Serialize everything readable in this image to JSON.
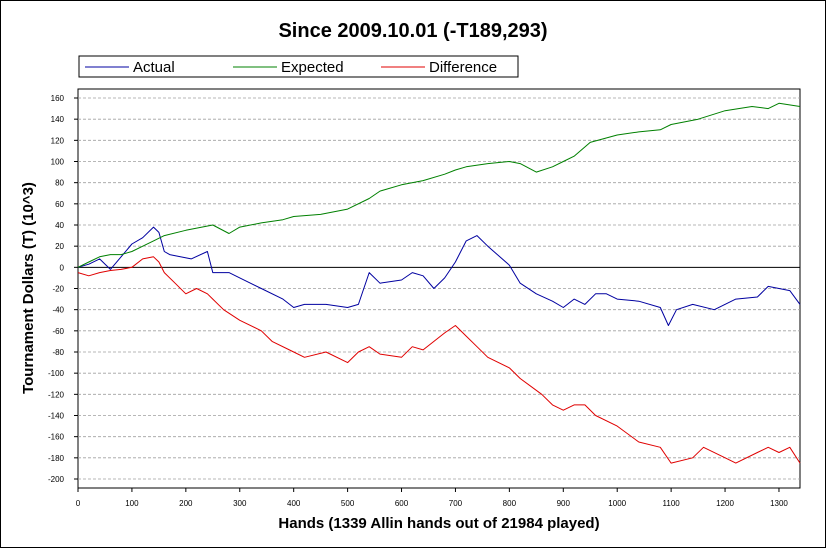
{
  "chart_data": {
    "type": "line",
    "title": "Since 2009.10.01 (-T189,293)",
    "xlabel": "Hands (1339 Allin hands out of 21984 played)",
    "ylabel": "Tournament Dollars (T) (10^3)",
    "xlim": [
      0,
      1339
    ],
    "ylim": [
      -200,
      160
    ],
    "x_ticks": [
      "0",
      "100",
      "200",
      "300",
      "400",
      "500",
      "600",
      "700",
      "800",
      "900",
      "1000",
      "1100",
      "1200",
      "1300"
    ],
    "y_ticks": [
      "160",
      "140",
      "120",
      "100",
      "80",
      "60",
      "40",
      "20",
      "0",
      "-20",
      "-40",
      "-60",
      "-80",
      "-100",
      "-120",
      "-140",
      "-160",
      "-180",
      "-200"
    ],
    "grid": "horizontal dashed",
    "legend_position": "top",
    "series": [
      {
        "name": "Actual",
        "color": "#0000a0",
        "x": [
          0,
          20,
          40,
          60,
          80,
          100,
          120,
          140,
          150,
          160,
          170,
          190,
          210,
          240,
          250,
          280,
          300,
          340,
          380,
          400,
          420,
          460,
          500,
          520,
          540,
          560,
          600,
          620,
          640,
          660,
          680,
          700,
          720,
          740,
          760,
          800,
          820,
          850,
          880,
          900,
          920,
          940,
          960,
          980,
          1000,
          1040,
          1080,
          1095,
          1110,
          1140,
          1180,
          1220,
          1260,
          1280,
          1300,
          1320,
          1339
        ],
        "y": [
          0,
          3,
          8,
          -2,
          10,
          22,
          28,
          38,
          33,
          15,
          12,
          10,
          8,
          15,
          -5,
          -5,
          -10,
          -20,
          -30,
          -38,
          -35,
          -35,
          -38,
          -35,
          -5,
          -15,
          -12,
          -5,
          -8,
          -20,
          -10,
          5,
          25,
          30,
          20,
          2,
          -15,
          -25,
          -32,
          -38,
          -30,
          -35,
          -25,
          -25,
          -30,
          -32,
          -38,
          -55,
          -40,
          -35,
          -40,
          -30,
          -28,
          -18,
          -20,
          -22,
          -35
        ]
      },
      {
        "name": "Expected",
        "color": "#008000",
        "x": [
          0,
          20,
          40,
          60,
          80,
          100,
          120,
          140,
          160,
          200,
          250,
          280,
          300,
          340,
          380,
          400,
          450,
          500,
          540,
          560,
          600,
          640,
          680,
          700,
          720,
          760,
          800,
          820,
          850,
          880,
          900,
          920,
          950,
          1000,
          1040,
          1080,
          1100,
          1150,
          1200,
          1250,
          1280,
          1300,
          1339
        ],
        "y": [
          0,
          5,
          10,
          12,
          12,
          15,
          20,
          25,
          30,
          35,
          40,
          32,
          38,
          42,
          45,
          48,
          50,
          55,
          65,
          72,
          78,
          82,
          88,
          92,
          95,
          98,
          100,
          98,
          90,
          95,
          100,
          105,
          118,
          125,
          128,
          130,
          135,
          140,
          148,
          152,
          150,
          155,
          152
        ]
      },
      {
        "name": "Difference",
        "color": "#e00000",
        "x": [
          0,
          20,
          40,
          60,
          80,
          100,
          120,
          140,
          150,
          160,
          180,
          200,
          220,
          240,
          250,
          270,
          300,
          340,
          360,
          400,
          420,
          460,
          500,
          520,
          540,
          560,
          600,
          620,
          640,
          660,
          680,
          700,
          720,
          740,
          760,
          800,
          820,
          860,
          880,
          900,
          920,
          940,
          960,
          1000,
          1040,
          1080,
          1100,
          1140,
          1160,
          1200,
          1220,
          1260,
          1280,
          1300,
          1320,
          1339
        ],
        "y": [
          -5,
          -8,
          -5,
          -3,
          -2,
          0,
          8,
          10,
          5,
          -5,
          -15,
          -25,
          -20,
          -25,
          -30,
          -40,
          -50,
          -60,
          -70,
          -80,
          -85,
          -80,
          -90,
          -80,
          -75,
          -82,
          -85,
          -75,
          -78,
          -70,
          -62,
          -55,
          -65,
          -75,
          -85,
          -95,
          -105,
          -120,
          -130,
          -135,
          -130,
          -130,
          -140,
          -150,
          -165,
          -170,
          -185,
          -180,
          -170,
          -180,
          -185,
          -175,
          -170,
          -175,
          -170,
          -185
        ]
      }
    ]
  }
}
